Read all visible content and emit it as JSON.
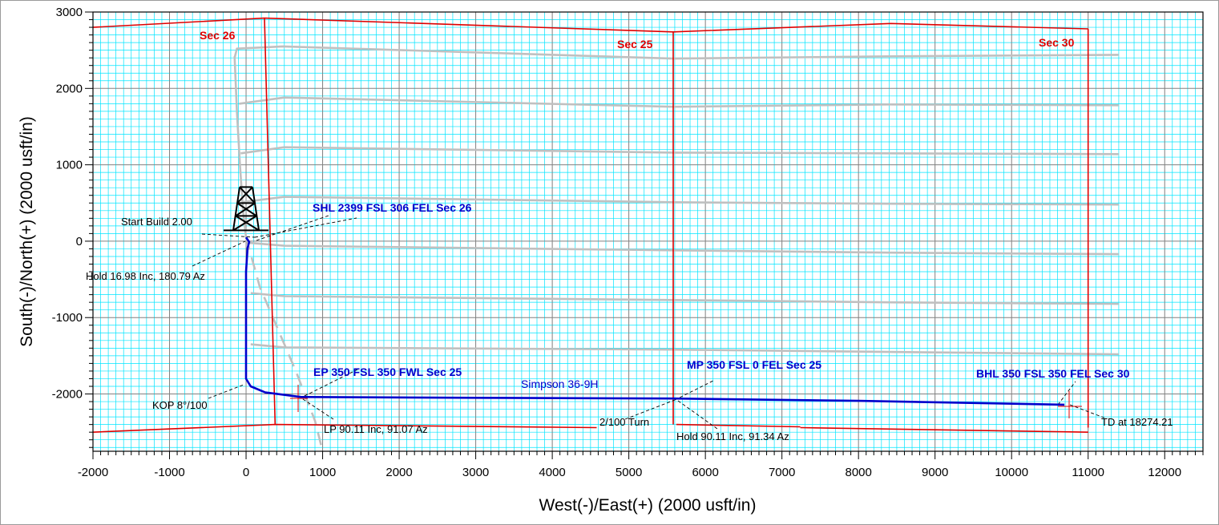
{
  "colors": {
    "minor_grid": "#00e5ff",
    "major_grid": "#808080",
    "section_lines": "#e00000",
    "well_path": "#0000cc",
    "offset_wells": "#c0c0c0",
    "annotation_lines": "#000000"
  },
  "chart_data": {
    "type": "line",
    "xlabel": "West(-)/East(+)  (2000 usft/in)",
    "ylabel": "South(-)/North(+)  (2000 usft/in)",
    "xlim": [
      -2000,
      12500
    ],
    "ylim": [
      -2750,
      3000
    ],
    "xticks": [
      -2000,
      -1000,
      0,
      1000,
      2000,
      3000,
      4000,
      5000,
      6000,
      7000,
      8000,
      9000,
      10000,
      11000,
      12000
    ],
    "yticks": [
      3000,
      2000,
      1000,
      0,
      -1000,
      -2000
    ],
    "grid": true,
    "section_labels": [
      {
        "text": "Sec 26",
        "x": -580,
        "y": 2680
      },
      {
        "text": "Sec 25",
        "x": 5040,
        "y": 2560
      },
      {
        "text": "Sec 30",
        "x": 10320,
        "y": 2580
      }
    ],
    "section_lines": [
      {
        "points": [
          [
            -2000,
            2800
          ],
          [
            240,
            2920
          ],
          [
            5580,
            2740
          ],
          [
            8420,
            2850
          ],
          [
            11000,
            2780
          ]
        ]
      },
      {
        "points": [
          [
            240,
            2920
          ],
          [
            380,
            -2400
          ]
        ]
      },
      {
        "points": [
          [
            5580,
            2740
          ],
          [
            5580,
            -2400
          ]
        ]
      },
      {
        "points": [
          [
            11000,
            2780
          ],
          [
            11000,
            -2440
          ]
        ]
      },
      {
        "points": [
          [
            -2000,
            -2500
          ],
          [
            380,
            -2400
          ],
          [
            4580,
            -2440
          ]
        ]
      },
      {
        "points": [
          [
            5620,
            -2400
          ],
          [
            7240,
            -2430
          ]
        ]
      },
      {
        "points": [
          [
            7240,
            -2440
          ],
          [
            11000,
            -2500
          ]
        ]
      }
    ],
    "offset_wells": [
      {
        "points": [
          [
            -150,
            2400
          ],
          [
            -120,
            2520
          ],
          [
            480,
            2550
          ],
          [
            5580,
            2390
          ],
          [
            8400,
            2420
          ],
          [
            11400,
            2440
          ]
        ]
      },
      {
        "points": [
          [
            -90,
            1800
          ],
          [
            500,
            1880
          ],
          [
            5580,
            1760
          ],
          [
            8400,
            1790
          ],
          [
            11400,
            1780
          ]
        ]
      },
      {
        "points": [
          [
            -70,
            1150
          ],
          [
            500,
            1230
          ],
          [
            5580,
            1160
          ],
          [
            8400,
            1150
          ],
          [
            11400,
            1140
          ]
        ]
      },
      {
        "points": [
          [
            -60,
            510
          ],
          [
            500,
            580
          ],
          [
            5580,
            510
          ],
          [
            8400,
            490
          ],
          [
            11400,
            480
          ]
        ]
      },
      {
        "points": [
          [
            20,
            -20
          ],
          [
            500,
            -60
          ],
          [
            5580,
            -120
          ],
          [
            8400,
            -150
          ],
          [
            11400,
            -170
          ]
        ]
      },
      {
        "points": [
          [
            60,
            -680
          ],
          [
            500,
            -720
          ],
          [
            5580,
            -770
          ],
          [
            8400,
            -800
          ],
          [
            11400,
            -820
          ]
        ]
      },
      {
        "points": [
          [
            60,
            -1350
          ],
          [
            500,
            -1390
          ],
          [
            5580,
            -1420
          ],
          [
            8400,
            -1450
          ],
          [
            11400,
            -1480
          ]
        ]
      },
      {
        "points": [
          [
            -150,
            2420
          ],
          [
            -120,
            1700
          ],
          [
            -80,
            1000
          ],
          [
            -40,
            400
          ],
          [
            0,
            50
          ]
        ]
      }
    ],
    "offset_wells_dashed": [
      {
        "points": [
          [
            0,
            50
          ],
          [
            180,
            -600
          ],
          [
            650,
            -1700
          ],
          [
            900,
            -2350
          ],
          [
            1000,
            -2750
          ]
        ]
      }
    ],
    "series": [
      {
        "name": "Simpson 36-9H",
        "points": [
          [
            0,
            50
          ],
          [
            40,
            -10
          ],
          [
            20,
            -90
          ],
          [
            0,
            -400
          ],
          [
            0,
            -1800
          ],
          [
            60,
            -1900
          ],
          [
            250,
            -1980
          ],
          [
            720,
            -2040
          ],
          [
            3000,
            -2050
          ],
          [
            5580,
            -2060
          ],
          [
            8000,
            -2090
          ],
          [
            10690,
            -2140
          ]
        ]
      }
    ],
    "annotations": [
      {
        "text": "SHL 2399 FSL 306 FEL Sec 26",
        "style": "blue-bold"
      },
      {
        "text": "Start Build 2.00",
        "style": "black"
      },
      {
        "text": "Hold 16.98 Inc, 180.79 Az",
        "style": "black"
      },
      {
        "text": "KOP 8°/100",
        "style": "black"
      },
      {
        "text": "EP 350 FSL 350 FWL Sec 25",
        "style": "blue-bold"
      },
      {
        "text": "LP 90.11 Inc, 91.07 Az",
        "style": "black"
      },
      {
        "text": "Simpson 36-9H",
        "style": "blue"
      },
      {
        "text": "MP 350 FSL 0 FEL Sec 25",
        "style": "blue-bold"
      },
      {
        "text": "2/100 Turn",
        "style": "black"
      },
      {
        "text": "Hold 90.11 Inc, 91.34 Az",
        "style": "black"
      },
      {
        "text": "BHL 350 FSL 350 FEL Sec 30",
        "style": "blue-bold"
      },
      {
        "text": "TD at  18274.21",
        "style": "black"
      }
    ]
  }
}
